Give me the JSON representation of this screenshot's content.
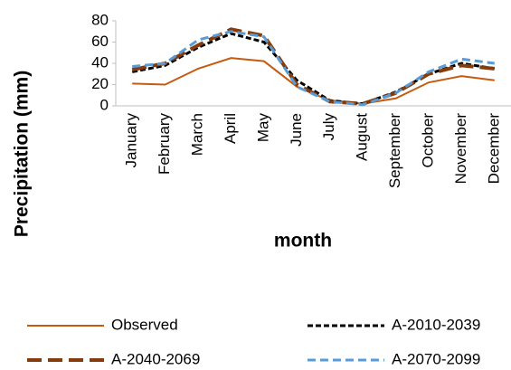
{
  "chart_data": {
    "type": "line",
    "x_label": "month",
    "y_label": "Precipitation (mm)",
    "categories": [
      "January",
      "February",
      "March",
      "April",
      "May",
      "June",
      "July",
      "August",
      "September",
      "October",
      "November",
      "December"
    ],
    "series": [
      {
        "name": "Observed",
        "color": "#c55a11",
        "values": [
          21,
          20,
          35,
          45,
          42,
          18,
          5,
          2,
          7,
          22,
          28,
          24
        ]
      },
      {
        "name": "A-2010-2039",
        "color": "#000000",
        "values": [
          32,
          38,
          55,
          68,
          60,
          24,
          5,
          2,
          13,
          30,
          40,
          35
        ]
      },
      {
        "name": "A-2040-2069",
        "color": "#843c0c",
        "values": [
          34,
          40,
          57,
          72,
          66,
          20,
          4,
          2,
          12,
          30,
          38,
          35
        ]
      },
      {
        "name": "A-2070-2099",
        "color": "#5b9bd5",
        "values": [
          37,
          40,
          62,
          70,
          65,
          18,
          4,
          1,
          12,
          32,
          44,
          40
        ]
      }
    ],
    "ylim": [
      0,
      80
    ],
    "yticks": [
      0,
      20,
      40,
      60,
      80
    ],
    "grid": false,
    "legend": "bottom"
  }
}
